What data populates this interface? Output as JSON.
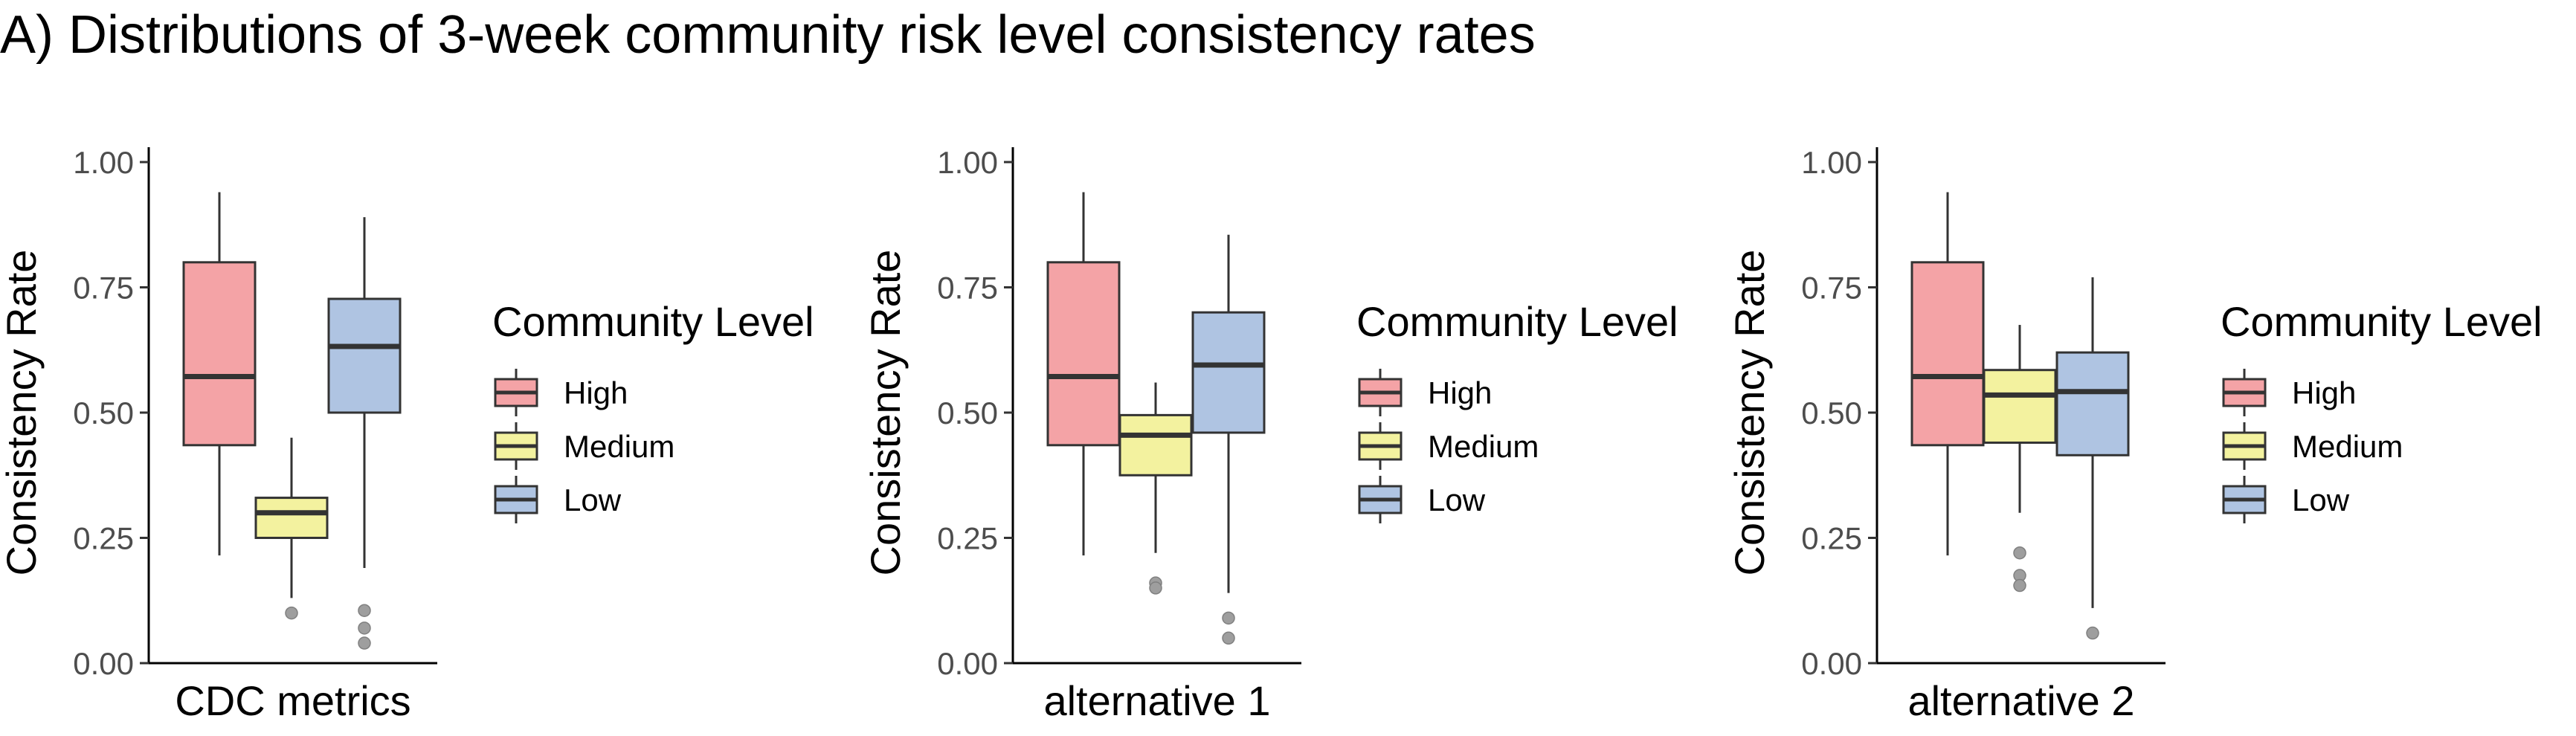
{
  "title": "A) Distributions of 3-week community risk level consistency rates",
  "legend_title": "Community Level",
  "legend_items": [
    {
      "label": "High",
      "color": "#F4A3A6"
    },
    {
      "label": "Medium",
      "color": "#F3F29F"
    },
    {
      "label": "Low",
      "color": "#AFC4E2"
    }
  ],
  "chart_data": [
    {
      "type": "box",
      "xlabel": "CDC metrics",
      "ylabel": "Consistency Rate",
      "ylim": [
        0,
        1
      ],
      "yticks": [
        "0.00",
        "0.25",
        "0.50",
        "0.75",
        "1.00"
      ],
      "grid": false,
      "legend_position": "right",
      "series": [
        {
          "name": "High",
          "whisker_low": 0.215,
          "q1": 0.435,
          "median": 0.572,
          "q3": 0.8,
          "whisker_high": 0.94,
          "outliers": []
        },
        {
          "name": "Medium",
          "whisker_low": 0.13,
          "q1": 0.25,
          "median": 0.3,
          "q3": 0.33,
          "whisker_high": 0.45,
          "outliers": [
            0.1
          ]
        },
        {
          "name": "Low",
          "whisker_low": 0.19,
          "q1": 0.5,
          "median": 0.632,
          "q3": 0.727,
          "whisker_high": 0.89,
          "outliers": [
            0.105,
            0.07,
            0.04
          ]
        }
      ]
    },
    {
      "type": "box",
      "xlabel": "alternative 1",
      "ylabel": "Consistency Rate",
      "ylim": [
        0,
        1
      ],
      "yticks": [
        "0.00",
        "0.25",
        "0.50",
        "0.75",
        "1.00"
      ],
      "grid": false,
      "legend_position": "right",
      "series": [
        {
          "name": "High",
          "whisker_low": 0.215,
          "q1": 0.435,
          "median": 0.572,
          "q3": 0.8,
          "whisker_high": 0.94,
          "outliers": []
        },
        {
          "name": "Medium",
          "whisker_low": 0.22,
          "q1": 0.375,
          "median": 0.455,
          "q3": 0.495,
          "whisker_high": 0.56,
          "outliers": [
            0.16,
            0.15
          ]
        },
        {
          "name": "Low",
          "whisker_low": 0.14,
          "q1": 0.46,
          "median": 0.595,
          "q3": 0.7,
          "whisker_high": 0.855,
          "outliers": [
            0.09,
            0.05
          ]
        }
      ]
    },
    {
      "type": "box",
      "xlabel": "alternative 2",
      "ylabel": "Consistency Rate",
      "ylim": [
        0,
        1
      ],
      "yticks": [
        "0.00",
        "0.25",
        "0.50",
        "0.75",
        "1.00"
      ],
      "grid": false,
      "legend_position": "right",
      "series": [
        {
          "name": "High",
          "whisker_low": 0.215,
          "q1": 0.435,
          "median": 0.572,
          "q3": 0.8,
          "whisker_high": 0.94,
          "outliers": []
        },
        {
          "name": "Medium",
          "whisker_low": 0.3,
          "q1": 0.44,
          "median": 0.535,
          "q3": 0.585,
          "whisker_high": 0.675,
          "outliers": [
            0.22,
            0.175,
            0.155
          ]
        },
        {
          "name": "Low",
          "whisker_low": 0.11,
          "q1": 0.415,
          "median": 0.542,
          "q3": 0.62,
          "whisker_high": 0.77,
          "outliers": [
            0.06
          ]
        }
      ]
    }
  ]
}
